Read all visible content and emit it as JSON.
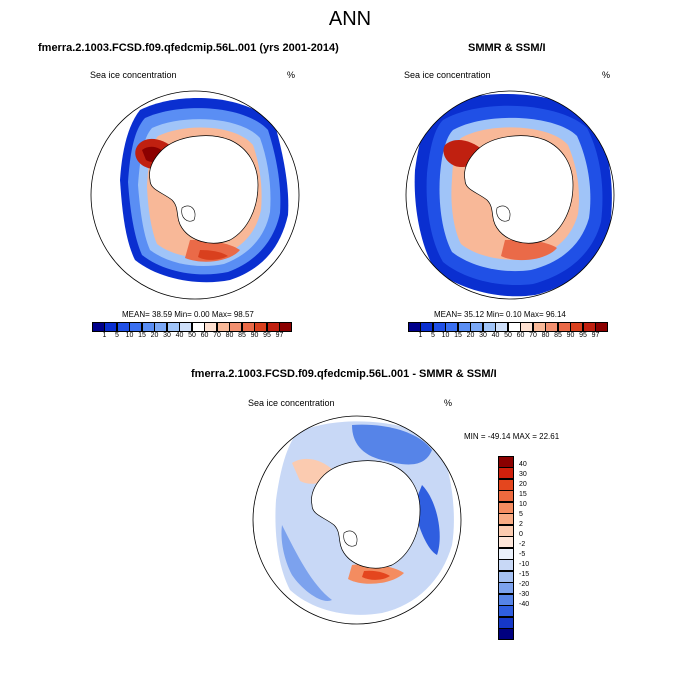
{
  "figure": {
    "title": "ANN",
    "map": {
      "left": {
        "heading": "fmerra.2.1003.FCSD.f09.qfedcmip.56L.001 (yrs 2001-2014)",
        "variable": "Sea ice concentration",
        "units": "%",
        "stats": "MEAN=  38.59  Min=   0.00  Max=  98.57"
      },
      "right": {
        "heading": "SMMR & SSM/I",
        "variable": "Sea ice concentration",
        "units": "%",
        "stats": "MEAN=  35.12  Min=   0.10  Max=  96.14"
      },
      "diff": {
        "heading": "fmerra.2.1003.FCSD.f09.qfedcmip.56L.001 - SMMR & SSM/I",
        "variable": "Sea ice concentration",
        "units": "%",
        "stats": "MIN = -49.14 MAX =  22.61"
      }
    },
    "legend_abs": {
      "labels": [
        "1",
        "5",
        "10",
        "15",
        "20",
        "30",
        "40",
        "50",
        "60",
        "70",
        "80",
        "85",
        "90",
        "95",
        "97"
      ],
      "colors": [
        "#00008b",
        "#0a2fd0",
        "#2050e6",
        "#3a6ff0",
        "#5a8ef4",
        "#7ba8f6",
        "#a0c4f8",
        "#cfe0fa",
        "#ffffff",
        "#fde0d0",
        "#f8b898",
        "#f29070",
        "#ea6a48",
        "#d9401e",
        "#c02010",
        "#8b0000"
      ]
    },
    "legend_diff": {
      "labels": [
        "40",
        "30",
        "20",
        "15",
        "10",
        "5",
        "2",
        "0",
        "-2",
        "-5",
        "-10",
        "-15",
        "-20",
        "-30",
        "-40"
      ],
      "colors": [
        "#8b0000",
        "#d0200c",
        "#e4461e",
        "#ee6a3e",
        "#f48c60",
        "#f8ab84",
        "#fbcbb0",
        "#fde6da",
        "#eaf0fb",
        "#c8d8f6",
        "#a4c0f2",
        "#7ca2ee",
        "#5684e8",
        "#2f5ee0",
        "#1638c8",
        "#000080"
      ]
    }
  }
}
